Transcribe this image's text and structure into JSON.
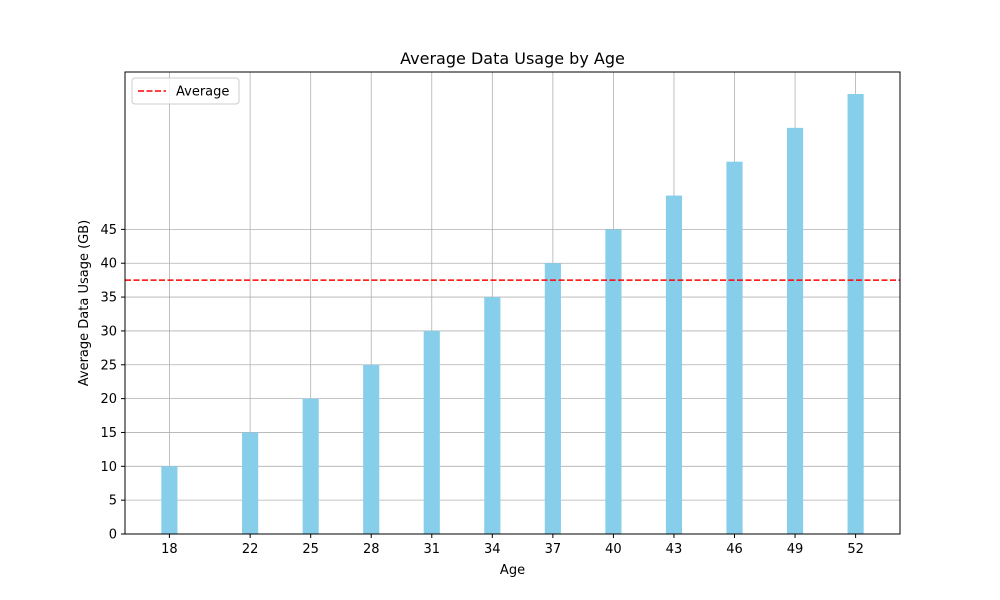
{
  "chart_data": {
    "type": "bar",
    "title": "Average Data Usage by Age",
    "xlabel": "Age",
    "ylabel": "Average Data Usage (GB)",
    "x": [
      18,
      22,
      25,
      28,
      31,
      34,
      37,
      40,
      43,
      46,
      49,
      52
    ],
    "x_tick_labels": [
      "18",
      "22",
      "25",
      "28",
      "31",
      "34",
      "37",
      "40",
      "43",
      "46",
      "49",
      "52"
    ],
    "values": [
      10,
      15,
      20,
      25,
      30,
      35,
      40,
      45,
      50,
      55,
      60,
      65
    ],
    "bar_width_units": 0.8,
    "xlim": [
      15.8,
      54.2
    ],
    "ylim": [
      0,
      68.25
    ],
    "y_ticks": [
      0,
      5,
      10,
      15,
      20,
      25,
      30,
      35,
      40,
      45
    ],
    "y_tick_labels": [
      "0",
      "5",
      "10",
      "15",
      "20",
      "25",
      "30",
      "35",
      "40",
      "45"
    ],
    "average": {
      "label": "Average",
      "value": 37.5,
      "style": "dashed"
    },
    "grid": true,
    "legend": {
      "position": "top-left",
      "entries": [
        "Average"
      ]
    },
    "colors": {
      "bar": "#87ceeb",
      "average_line": "#ff0000",
      "grid": "#b0b0b0",
      "axes": "#000000"
    }
  }
}
